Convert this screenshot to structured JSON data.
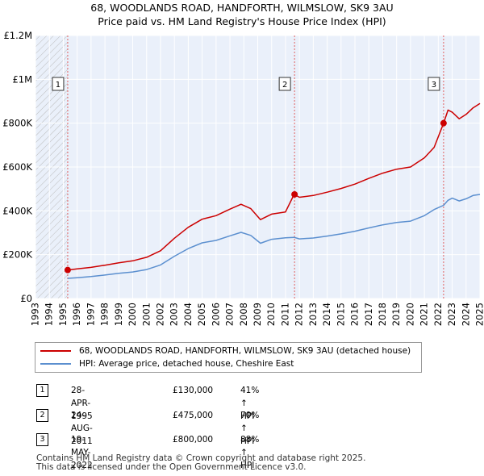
{
  "title": {
    "line1": "68, WOODLANDS ROAD, HANDFORTH, WILMSLOW, SK9 3AU",
    "line2": "Price paid vs. HM Land Registry's House Price Index (HPI)"
  },
  "colors": {
    "price_line": "#cc0000",
    "hpi_line": "#5b8fcf",
    "chart_bg": "#eaf0fa",
    "grid": "#ffffff",
    "marker_line": "#e06060"
  },
  "chart_data": {
    "type": "line",
    "x_range": [
      1993,
      2025
    ],
    "ylim": [
      0,
      1200000
    ],
    "y_ticks": [
      0,
      200000,
      400000,
      600000,
      800000,
      1000000,
      1200000
    ],
    "y_tick_labels": [
      "£0",
      "£200K",
      "£400K",
      "£600K",
      "£800K",
      "£1M",
      "£1.2M"
    ],
    "x_ticks": [
      1993,
      1994,
      1995,
      1996,
      1997,
      1998,
      1999,
      2000,
      2001,
      2002,
      2003,
      2004,
      2005,
      2006,
      2007,
      2008,
      2009,
      2010,
      2011,
      2012,
      2013,
      2014,
      2015,
      2016,
      2017,
      2018,
      2019,
      2020,
      2021,
      2022,
      2023,
      2024,
      2025
    ],
    "hatched_before": 1995.32,
    "series": [
      {
        "name": "68, WOODLANDS ROAD, HANDFORTH, WILMSLOW, SK9 3AU (detached house)",
        "x": [
          1995.32,
          1996,
          1997,
          1998,
          1999,
          2000,
          2001,
          2002,
          2003,
          2004,
          2005,
          2006,
          2007,
          2007.8,
          2008.5,
          2009.2,
          2010,
          2011,
          2011.62,
          2012,
          2013,
          2014,
          2015,
          2016,
          2017,
          2018,
          2019,
          2020,
          2021,
          2021.7,
          2022.38,
          2022.7,
          2023,
          2023.5,
          2024,
          2024.5,
          2025
        ],
        "y": [
          130000,
          135000,
          142000,
          152000,
          163000,
          172000,
          188000,
          218000,
          275000,
          325000,
          362000,
          378000,
          408000,
          430000,
          410000,
          360000,
          385000,
          395000,
          475000,
          462000,
          470000,
          485000,
          502000,
          522000,
          548000,
          572000,
          590000,
          600000,
          642000,
          690000,
          800000,
          860000,
          850000,
          820000,
          840000,
          870000,
          890000
        ]
      },
      {
        "name": "HPI: Average price, detached house, Cheshire East",
        "x": [
          1995.32,
          1996,
          1997,
          1998,
          1999,
          2000,
          2001,
          2002,
          2003,
          2004,
          2005,
          2006,
          2007,
          2007.8,
          2008.5,
          2009.2,
          2010,
          2011,
          2011.62,
          2012,
          2013,
          2014,
          2015,
          2016,
          2017,
          2018,
          2019,
          2020,
          2021,
          2021.7,
          2022.38,
          2022.7,
          2023,
          2023.5,
          2024,
          2024.5,
          2025
        ],
        "y": [
          92000,
          95000,
          100000,
          107000,
          115000,
          121000,
          132000,
          153000,
          193000,
          228000,
          254000,
          265000,
          286000,
          302000,
          288000,
          252000,
          270000,
          277000,
          279000,
          272000,
          276000,
          285000,
          295000,
          307000,
          322000,
          336000,
          347000,
          353000,
          378000,
          406000,
          425000,
          448000,
          458000,
          445000,
          455000,
          470000,
          475000
        ]
      }
    ],
    "markers": [
      {
        "label": "1",
        "x": 1995.32,
        "y": 130000
      },
      {
        "label": "2",
        "x": 2011.65,
        "y": 475000
      },
      {
        "label": "3",
        "x": 2022.38,
        "y": 800000
      }
    ]
  },
  "legend": {
    "price_label": "68, WOODLANDS ROAD, HANDFORTH, WILMSLOW, SK9 3AU (detached house)",
    "hpi_label": "HPI: Average price, detached house, Cheshire East"
  },
  "transactions": [
    {
      "num": "1",
      "date": "28-APR-1995",
      "price": "£130,000",
      "hpi": "41% ↑ HPI"
    },
    {
      "num": "2",
      "date": "24-AUG-2011",
      "price": "£475,000",
      "hpi": "70% ↑ HPI"
    },
    {
      "num": "3",
      "date": "19-MAY-2022",
      "price": "£800,000",
      "hpi": "88% ↑ HPI"
    }
  ],
  "footer": {
    "line1": "Contains HM Land Registry data © Crown copyright and database right 2025.",
    "line2": "This data is licensed under the Open Government Licence v3.0."
  }
}
